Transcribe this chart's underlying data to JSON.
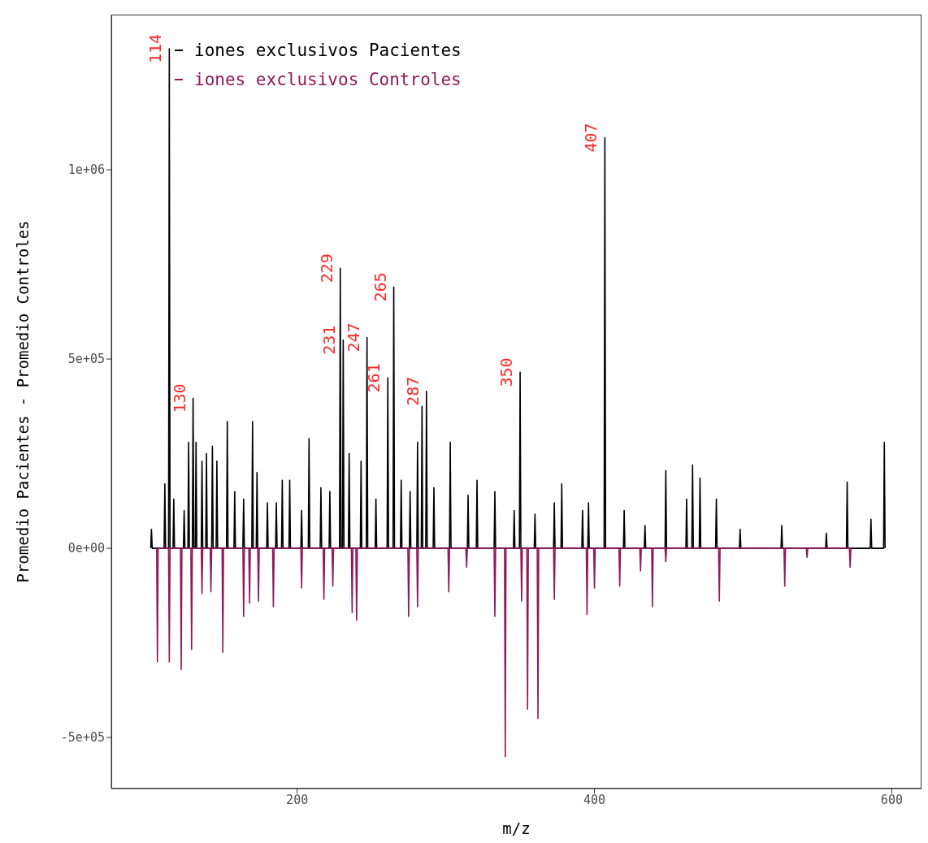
{
  "chart_data": {
    "type": "line",
    "xlabel": "m/z",
    "ylabel": "Promedio Pacientes - Promedio Controles",
    "xlim": [
      75,
      620
    ],
    "xticks": [
      200,
      400,
      600
    ],
    "ylim": [
      -635000,
      1410000
    ],
    "yticks": [
      {
        "value": -500000,
        "label": "-5e+05"
      },
      {
        "value": 0,
        "label": "0e+00"
      },
      {
        "value": 500000,
        "label": "5e+05"
      },
      {
        "value": 1000000,
        "label": "1e+06"
      }
    ],
    "grid": false,
    "legend": "top left",
    "marker": "none",
    "line_style": "solid",
    "series": [
      {
        "name": "iones exclusivos Pacientes",
        "color": "#000000",
        "x": [
          101.5,
          102,
          102.5,
          110.5,
          111,
          111.5,
          113.5,
          114,
          114.5,
          116.5,
          117,
          117.5,
          123.5,
          124,
          124.5,
          126.5,
          127,
          127.5,
          129.5,
          130,
          130.5,
          131.5,
          132,
          132.5,
          135.5,
          136,
          136.5,
          138.5,
          139,
          139.5,
          142.5,
          143,
          143.5,
          145.5,
          146,
          146.5,
          152.5,
          153,
          153.5,
          157.5,
          158,
          158.5,
          163.5,
          164,
          164.5,
          169.5,
          170,
          170.5,
          172.5,
          173,
          173.5,
          179.5,
          180,
          180.5,
          185.5,
          186,
          186.5,
          189.5,
          190,
          190.5,
          194.5,
          195,
          195.5,
          202.5,
          203,
          203.5,
          207.5,
          208,
          208.5,
          215.5,
          216,
          216.5,
          221.5,
          222,
          222.5,
          228.5,
          229,
          229.5,
          230.5,
          231,
          231.5,
          234.5,
          235,
          235.5,
          242.5,
          243,
          243.5,
          246.5,
          247,
          247.5,
          252.5,
          253,
          253.5,
          260.5,
          261,
          261.5,
          264.5,
          265,
          265.5,
          269.5,
          270,
          270.5,
          275.5,
          276,
          276.5,
          280.5,
          281,
          281.5,
          283.5,
          284,
          284.5,
          286.5,
          287,
          287.5,
          291.5,
          292,
          292.5,
          302.5,
          303,
          303.5,
          314.5,
          315,
          315.5,
          320.5,
          321,
          321.5,
          332.5,
          333,
          333.5,
          345.5,
          346,
          346.5,
          349.5,
          350,
          350.5,
          359.5,
          360,
          360.5,
          372.5,
          373,
          373.5,
          377.5,
          378,
          378.5,
          391.5,
          392,
          392.5,
          395.5,
          396,
          396.5,
          406.5,
          407,
          407.5,
          419.5,
          420,
          420.5,
          433.5,
          434,
          434.5,
          447.5,
          448,
          448.5,
          461.5,
          462,
          462.5,
          465.5,
          466,
          466.5,
          470.5,
          471,
          471.5,
          481.5,
          482,
          482.5,
          497.5,
          498,
          498.5,
          525.5,
          526,
          526.5,
          555.5,
          556,
          556.5,
          569.5,
          570,
          570.5,
          585.5,
          586,
          586.5,
          594.5,
          595,
          595.5
        ],
        "values": [
          0,
          50000,
          0,
          0,
          170000,
          0,
          0,
          1320000,
          0,
          0,
          130000,
          0,
          0,
          100000,
          0,
          0,
          280000,
          0,
          0,
          396000,
          0,
          0,
          280000,
          0,
          0,
          230000,
          0,
          0,
          250000,
          0,
          0,
          270000,
          0,
          0,
          230000,
          0,
          0,
          335000,
          0,
          0,
          150000,
          0,
          0,
          130000,
          0,
          0,
          335000,
          0,
          0,
          200000,
          0,
          0,
          120000,
          0,
          0,
          120000,
          0,
          0,
          180000,
          0,
          0,
          180000,
          0,
          0,
          100000,
          0,
          0,
          290000,
          0,
          0,
          160000,
          0,
          0,
          150000,
          0,
          0,
          740000,
          0,
          0,
          550000,
          0,
          0,
          250000,
          0,
          0,
          230000,
          0,
          0,
          557000,
          0,
          0,
          130000,
          0,
          0,
          450000,
          0,
          0,
          690000,
          0,
          0,
          180000,
          0,
          0,
          150000,
          0,
          0,
          280000,
          0,
          0,
          375000,
          0,
          0,
          415000,
          0,
          0,
          160000,
          0,
          0,
          280000,
          0,
          0,
          140000,
          0,
          0,
          180000,
          0,
          0,
          150000,
          0,
          0,
          100000,
          0,
          0,
          465000,
          0,
          0,
          90000,
          0,
          0,
          120000,
          0,
          0,
          170000,
          0,
          0,
          100000,
          0,
          0,
          120000,
          0,
          0,
          1085000,
          0,
          0,
          100000,
          0,
          0,
          60000,
          0,
          0,
          205000,
          0,
          0,
          130000,
          0,
          0,
          220000,
          0,
          0,
          185000,
          0,
          0,
          130000,
          0,
          0,
          50000,
          0,
          0,
          60000,
          0,
          0,
          40000,
          0,
          0,
          175000,
          0,
          0,
          77000,
          0,
          0,
          280000,
          0
        ]
      },
      {
        "name": "iones exclusivos Controles",
        "color": "#8e1a5a",
        "x": [
          105.5,
          106,
          106.5,
          113.5,
          114,
          114.5,
          121.5,
          122,
          122.5,
          128.5,
          129,
          129.5,
          135.5,
          136,
          136.5,
          141.5,
          142,
          142.5,
          149.5,
          150,
          150.5,
          163.5,
          164,
          164.5,
          167.5,
          168,
          168.5,
          173.5,
          174,
          174.5,
          183.5,
          184,
          184.5,
          202.5,
          203,
          203.5,
          217.5,
          218,
          218.5,
          223.5,
          224,
          224.5,
          236.5,
          237,
          237.5,
          239.5,
          240,
          240.5,
          274.5,
          275,
          275.5,
          280.5,
          281,
          281.5,
          301.5,
          302,
          302.5,
          313.5,
          314,
          314.5,
          332.5,
          333,
          333.5,
          339.5,
          340,
          340.5,
          350.5,
          351,
          351.5,
          354.5,
          355,
          355.5,
          361.5,
          362,
          362.5,
          372.5,
          373,
          373.5,
          394.5,
          395,
          395.5,
          399.5,
          400,
          400.5,
          416.5,
          417,
          417.5,
          430.5,
          431,
          431.5,
          438.5,
          439,
          439.5,
          447.5,
          448,
          448.5,
          483.5,
          484,
          484.5,
          527.5,
          528,
          528.5,
          542.5,
          543,
          543.5,
          571.5,
          572,
          572.5
        ],
        "values": [
          0,
          -300000,
          0,
          0,
          -300000,
          0,
          0,
          -320000,
          0,
          0,
          -267000,
          0,
          0,
          -120000,
          0,
          0,
          -115000,
          0,
          0,
          -275000,
          0,
          0,
          -180000,
          0,
          0,
          -145000,
          0,
          0,
          -140000,
          0,
          0,
          -155000,
          0,
          0,
          -105000,
          0,
          0,
          -135000,
          0,
          0,
          -100000,
          0,
          0,
          -170000,
          0,
          0,
          -190000,
          0,
          0,
          -180000,
          0,
          0,
          -155000,
          0,
          0,
          -115000,
          0,
          0,
          -50000,
          0,
          0,
          -180000,
          0,
          0,
          -550000,
          0,
          0,
          -140000,
          0,
          0,
          -425000,
          0,
          0,
          -450000,
          0,
          0,
          -135000,
          0,
          0,
          -175000,
          0,
          0,
          -105000,
          0,
          0,
          -100000,
          0,
          0,
          -60000,
          0,
          0,
          -155000,
          0,
          0,
          -35000,
          0,
          0,
          -140000,
          0,
          0,
          -100000,
          0,
          0,
          -24000,
          0,
          0,
          -50000,
          0
        ]
      }
    ],
    "annotations": [
      {
        "text": "114",
        "x": 114,
        "y": 1320000
      },
      {
        "text": "130",
        "x": 130,
        "y": 396000
      },
      {
        "text": "229",
        "x": 229,
        "y": 740000
      },
      {
        "text": "231",
        "x": 231,
        "y": 550000
      },
      {
        "text": "247",
        "x": 247,
        "y": 557000
      },
      {
        "text": "261",
        "x": 261,
        "y": 450000
      },
      {
        "text": "265",
        "x": 265,
        "y": 690000
      },
      {
        "text": "287",
        "x": 287,
        "y": 415000
      },
      {
        "text": "350",
        "x": 350,
        "y": 465000
      },
      {
        "text": "407",
        "x": 407,
        "y": 1085000
      }
    ]
  }
}
